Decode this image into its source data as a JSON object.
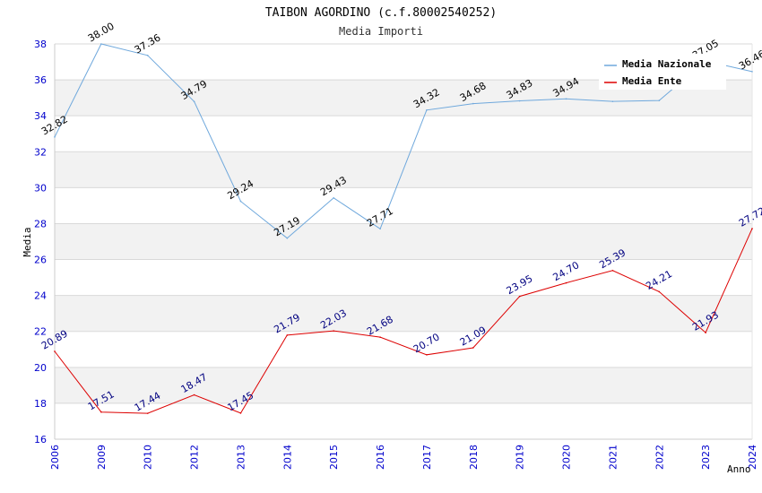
{
  "chart_data": {
    "type": "line",
    "title": "TAIBON AGORDINO (c.f.80002540252)",
    "subtitle": "Media Importi",
    "xlabel": "Anno",
    "ylabel": "Media",
    "ylim": [
      16,
      38
    ],
    "yticks": [
      "16",
      "18",
      "20",
      "22",
      "24",
      "26",
      "28",
      "30",
      "32",
      "34",
      "36",
      "38"
    ],
    "categories": [
      "2006",
      "2009",
      "2010",
      "2012",
      "2013",
      "2014",
      "2015",
      "2016",
      "2017",
      "2018",
      "2019",
      "2020",
      "2021",
      "2022",
      "2023",
      "2024"
    ],
    "series": [
      {
        "name": "Media Nazionale",
        "color": "#6fa8dc",
        "values": [
          32.82,
          38.0,
          37.36,
          34.79,
          29.24,
          27.19,
          29.43,
          27.71,
          34.32,
          34.68,
          34.83,
          34.94,
          34.8,
          34.85,
          37.05,
          36.46
        ],
        "labels": [
          "32.82",
          "38.00",
          "37.36",
          "34.79",
          "29.24",
          "27.19",
          "29.43",
          "27.71",
          "34.32",
          "34.68",
          "34.83",
          "34.94",
          "",
          "",
          "37.05",
          "36.46"
        ]
      },
      {
        "name": "Media Ente",
        "color": "#dd0000",
        "values": [
          20.89,
          17.51,
          17.44,
          18.47,
          17.45,
          21.79,
          22.03,
          21.68,
          20.7,
          21.09,
          23.95,
          24.7,
          25.39,
          24.21,
          21.93,
          27.72
        ],
        "labels": [
          "20.89",
          "17.51",
          "17.44",
          "18.47",
          "17.45",
          "21.79",
          "22.03",
          "21.68",
          "20.70",
          "21.09",
          "23.95",
          "24.70",
          "25.39",
          "24.21",
          "21.93",
          "27.72"
        ]
      }
    ],
    "legend_position": "top-right",
    "grid": true
  }
}
